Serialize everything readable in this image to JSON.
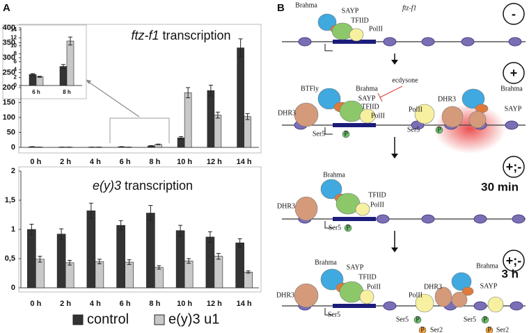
{
  "panel_labels": [
    "A",
    "B"
  ],
  "chart_data": [
    {
      "type": "bar",
      "title": "ftz-f1 transcription",
      "categories": [
        "0 h",
        "2 h",
        "4 h",
        "6 h",
        "8 h",
        "10 h",
        "12 h",
        "14 h"
      ],
      "series": [
        {
          "color": "#333333",
          "values": [
            2,
            1,
            1,
            2,
            5,
            32,
            190,
            333
          ],
          "errors": [
            0.5,
            0.3,
            0.3,
            0.5,
            1,
            4,
            18,
            30
          ]
        },
        {
          "color": "#c8c8c8",
          "values": [
            1,
            1,
            1,
            1,
            10,
            183,
            108,
            103
          ],
          "errors": [
            0.3,
            0.3,
            0.3,
            0.3,
            1,
            17,
            10,
            10
          ]
        }
      ],
      "ylim": [
        0,
        400
      ],
      "yticks": [
        0,
        50,
        100,
        150,
        200,
        250,
        300,
        350,
        400
      ]
    },
    {
      "type": "bar",
      "categories": [
        "6 h",
        "8 h"
      ],
      "series": [
        {
          "color": "#333333",
          "values": [
            2.8,
            4.8
          ],
          "errors": [
            0.2,
            0.5
          ]
        },
        {
          "color": "#c8c8c8",
          "values": [
            2.2,
            11.2
          ],
          "errors": [
            0.15,
            1
          ]
        }
      ],
      "ylim": [
        0,
        14
      ],
      "yticks": [
        0,
        2,
        4,
        6,
        8,
        10,
        12,
        14
      ]
    },
    {
      "type": "bar",
      "title": "e(y)3 transcription",
      "categories": [
        "0 h",
        "2 h",
        "4 h",
        "6 h",
        "8 h",
        "10 h",
        "12 h",
        "14 h"
      ],
      "series": [
        {
          "name": "control",
          "color": "#333333",
          "values": [
            1.0,
            0.92,
            1.32,
            1.07,
            1.28,
            0.98,
            0.87,
            0.77
          ],
          "errors": [
            0.09,
            0.09,
            0.13,
            0.08,
            0.13,
            0.09,
            0.09,
            0.07
          ]
        },
        {
          "name": "e(y)3 u1",
          "color": "#c8c8c8",
          "values": [
            0.49,
            0.43,
            0.45,
            0.44,
            0.35,
            0.46,
            0.54,
            0.27
          ],
          "errors": [
            0.05,
            0.04,
            0.04,
            0.04,
            0.03,
            0.04,
            0.05,
            0.02
          ]
        }
      ],
      "ylim": [
        0,
        2
      ],
      "yticks": [
        0,
        {
          "value": 0.5,
          "label": "0,5"
        },
        1,
        {
          "value": 1.5,
          "label": "1,5"
        },
        2
      ],
      "legend": "bottom"
    }
  ],
  "diagram": {
    "gene": "ftz-f1",
    "states": [
      {
        "sign": "-",
        "labels": [
          "Brahma",
          "SAYP",
          "TFIID",
          "PolII"
        ]
      },
      {
        "sign": "+",
        "labels": [
          "BTFly",
          "Brahma",
          "SAYP",
          "TFIID",
          "DHR3",
          "PolII",
          "ecdysone",
          "PolII",
          "DHR3",
          "Brahma",
          "SAYP",
          "Ser5",
          "P",
          "Ser5",
          "P"
        ]
      },
      {
        "sign": "+;-",
        "time": "30 min",
        "labels": [
          "Brahma",
          "TFIID",
          "DHR3",
          "PolII",
          "Ser5",
          "P"
        ]
      },
      {
        "sign": "+;-",
        "time": "3 h",
        "labels": [
          "Brahma",
          "SAYP",
          "TFIID",
          "DHR3",
          "PolII",
          "PolII",
          "DHR3",
          "Brahma",
          "SAYP",
          "Ser5",
          "Ser5",
          "P",
          "P",
          "Ser2",
          "Ser5",
          "P",
          "P",
          "Ser2"
        ]
      }
    ]
  }
}
